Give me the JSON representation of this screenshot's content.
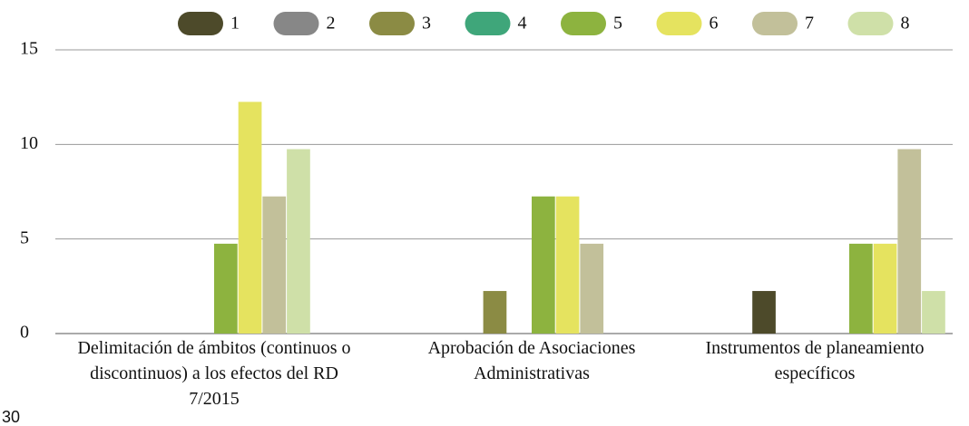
{
  "chart_data": {
    "type": "bar",
    "categories": [
      "Delimitación de ámbitos (continuos o discontinuos) a los efectos del RD 7/2015",
      "Aprobación de Asociaciones Administrativas",
      "Instrumentos de planeamiento específicos"
    ],
    "series": [
      {
        "name": "1",
        "color": "#4d4a2a",
        "values": [
          0,
          0,
          2.25
        ]
      },
      {
        "name": "2",
        "color": "#878787",
        "values": [
          0,
          0,
          0
        ]
      },
      {
        "name": "3",
        "color": "#8b8b44",
        "values": [
          0,
          2.25,
          0
        ]
      },
      {
        "name": "4",
        "color": "#3fa67a",
        "values": [
          0,
          0,
          0
        ]
      },
      {
        "name": "5",
        "color": "#8db33f",
        "values": [
          4.75,
          7.25,
          4.75
        ]
      },
      {
        "name": "6",
        "color": "#e5e35f",
        "values": [
          12.25,
          7.25,
          4.75
        ]
      },
      {
        "name": "7",
        "color": "#c2c09a",
        "values": [
          7.25,
          4.75,
          9.75
        ]
      },
      {
        "name": "8",
        "color": "#cfe0a8",
        "values": [
          9.75,
          0,
          2.25
        ]
      }
    ],
    "ylim": [
      0,
      15
    ],
    "yticks": [
      0,
      5,
      10,
      15
    ],
    "grid": true,
    "legend": "top",
    "annotation": "30"
  }
}
